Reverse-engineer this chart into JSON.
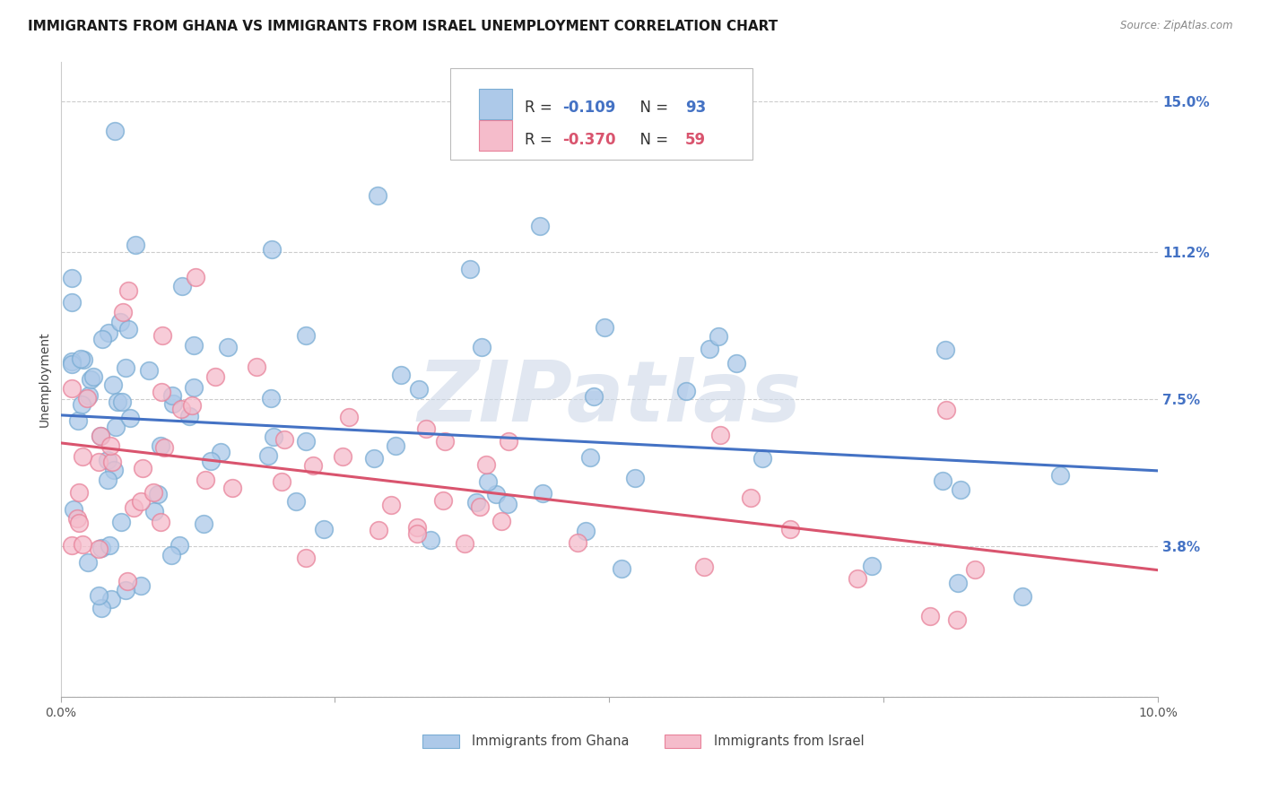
{
  "title": "IMMIGRANTS FROM GHANA VS IMMIGRANTS FROM ISRAEL UNEMPLOYMENT CORRELATION CHART",
  "source": "Source: ZipAtlas.com",
  "ylabel": "Unemployment",
  "yticks": [
    0.0,
    0.038,
    0.075,
    0.112,
    0.15
  ],
  "ytick_labels": [
    "",
    "3.8%",
    "7.5%",
    "11.2%",
    "15.0%"
  ],
  "xlim": [
    0.0,
    0.1
  ],
  "ylim": [
    0.0,
    0.16
  ],
  "ghana_R": -0.109,
  "ghana_N": 93,
  "israel_R": -0.37,
  "israel_N": 59,
  "ghana_color": "#adc9e9",
  "ghana_edge": "#7aadd4",
  "israel_color": "#f5bccb",
  "israel_edge": "#e8829a",
  "ghana_line_color": "#4472c4",
  "israel_line_color": "#d9546e",
  "watermark": "ZIPatlas",
  "watermark_color": "#cdd8e8",
  "legend_entries": [
    "Immigrants from Ghana",
    "Immigrants from Israel"
  ],
  "title_fontsize": 11,
  "axis_label_fontsize": 10,
  "tick_fontsize": 10,
  "ghana_line_y0": 0.071,
  "ghana_line_y1": 0.057,
  "israel_line_y0": 0.064,
  "israel_line_y1": 0.032
}
